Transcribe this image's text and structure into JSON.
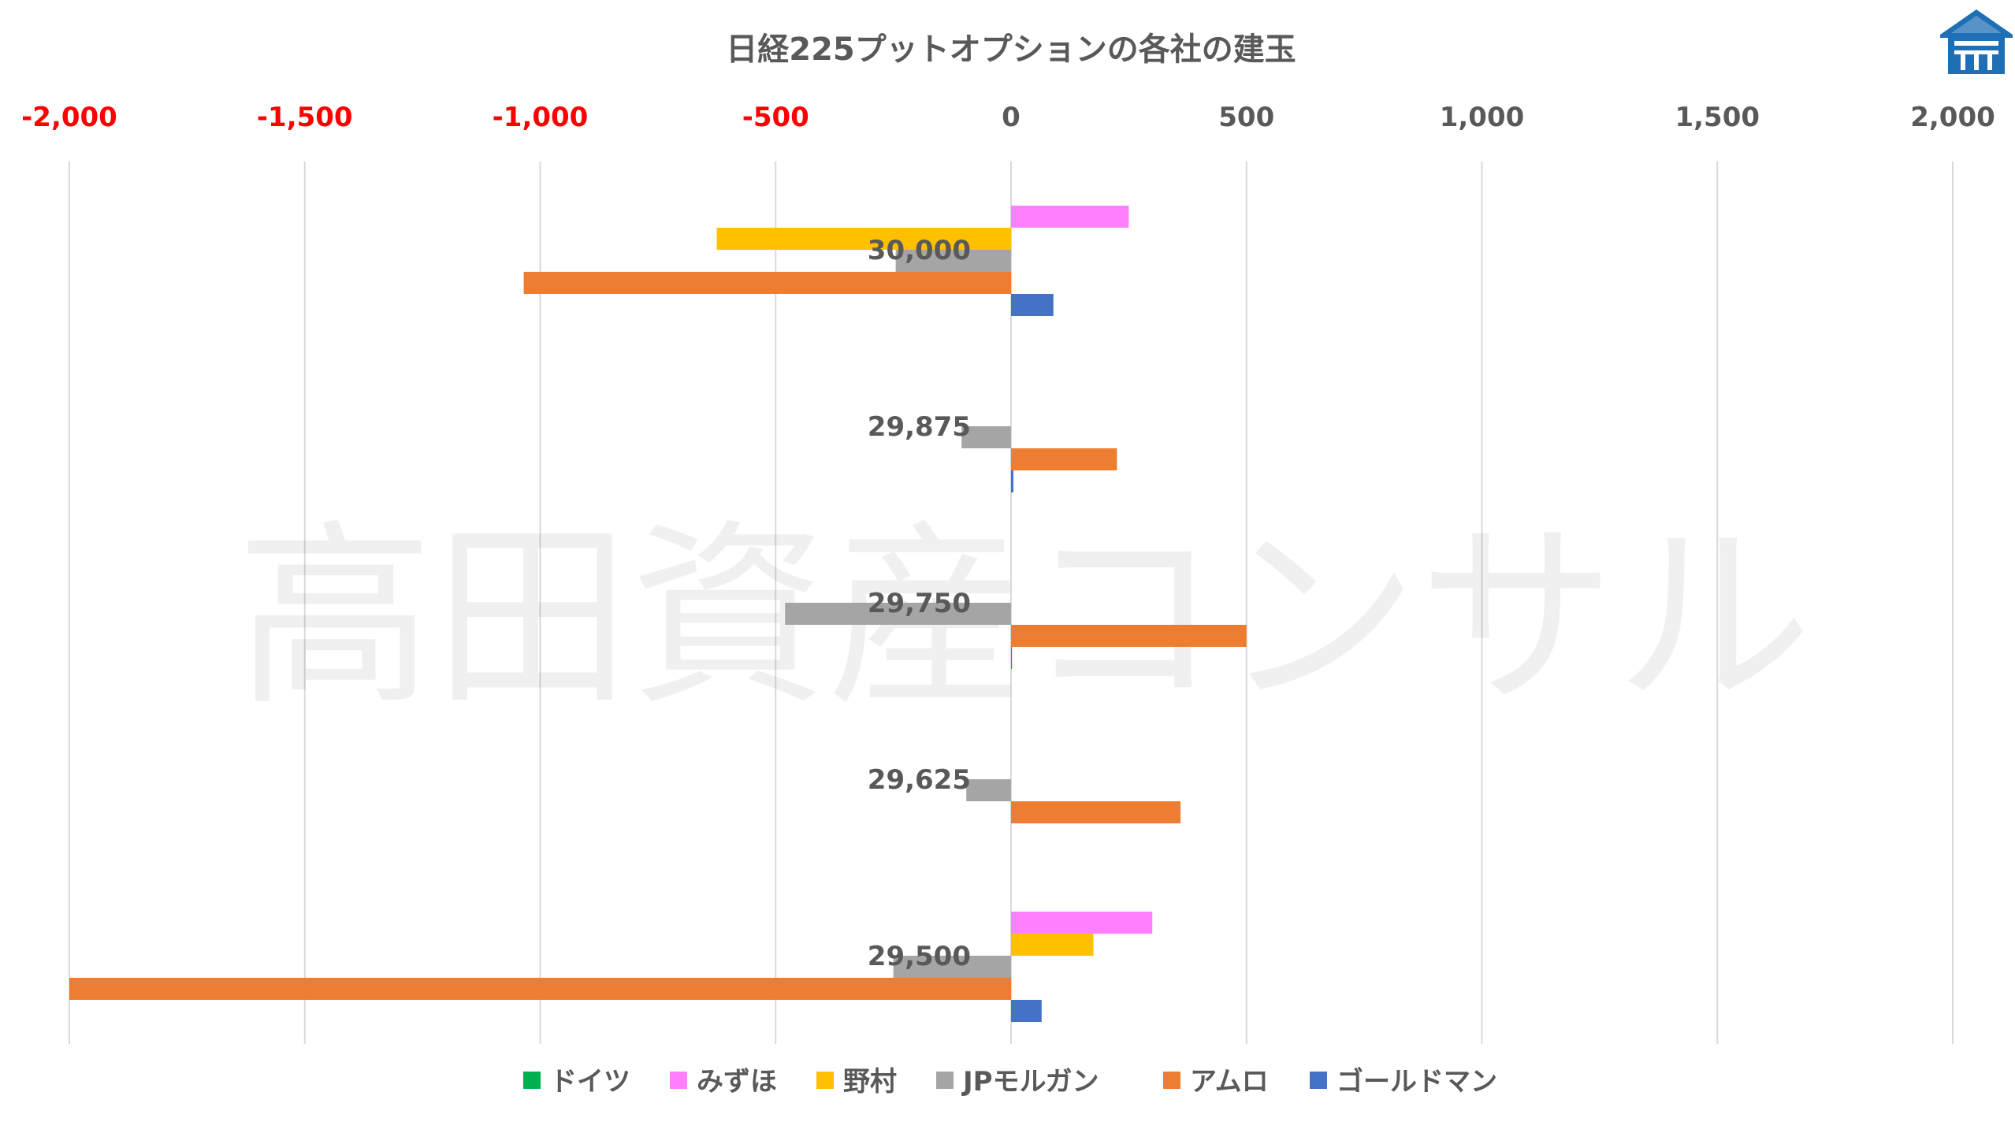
{
  "chart_data": {
    "type": "bar",
    "orientation": "horizontal",
    "title": "日経225プットオプションの各社の建玉",
    "xlim": [
      -2000,
      2000
    ],
    "x_ticks": [
      -2000,
      -1500,
      -1000,
      -500,
      0,
      500,
      1000,
      1500,
      2000
    ],
    "x_tick_labels": [
      "-2,000",
      "-1,500",
      "-1,000",
      "-500",
      "0",
      "500",
      "1,000",
      "1,500",
      "2,000"
    ],
    "negative_tick_color": "#ff0000",
    "positive_tick_color": "#595959",
    "axis_position": "top",
    "grid": true,
    "legend_position": "bottom",
    "categories": [
      "30,000",
      "29,875",
      "29,750",
      "29,625",
      "29,500"
    ],
    "series": [
      {
        "name": "ドイツ",
        "color": "#00b050",
        "values": [
          0,
          0,
          0,
          0,
          0
        ]
      },
      {
        "name": "みずほ",
        "color": "#ff80ff",
        "values": [
          250,
          0,
          0,
          0,
          300
        ]
      },
      {
        "name": "野村",
        "color": "#ffc000",
        "values": [
          -625,
          0,
          0,
          0,
          175
        ]
      },
      {
        "name": "JPモルガン",
        "color": "#a5a5a5",
        "values": [
          -245,
          -105,
          -480,
          -95,
          -250
        ]
      },
      {
        "name": "アムロ",
        "color": "#ed7d31",
        "values": [
          -1035,
          225,
          500,
          360,
          -2000
        ]
      },
      {
        "name": "ゴールドマン",
        "color": "#4472c4",
        "values": [
          90,
          5,
          2,
          0,
          65
        ]
      }
    ]
  },
  "watermark_text": "高田資産コンサル",
  "logo_icon": "takada-logo-icon"
}
